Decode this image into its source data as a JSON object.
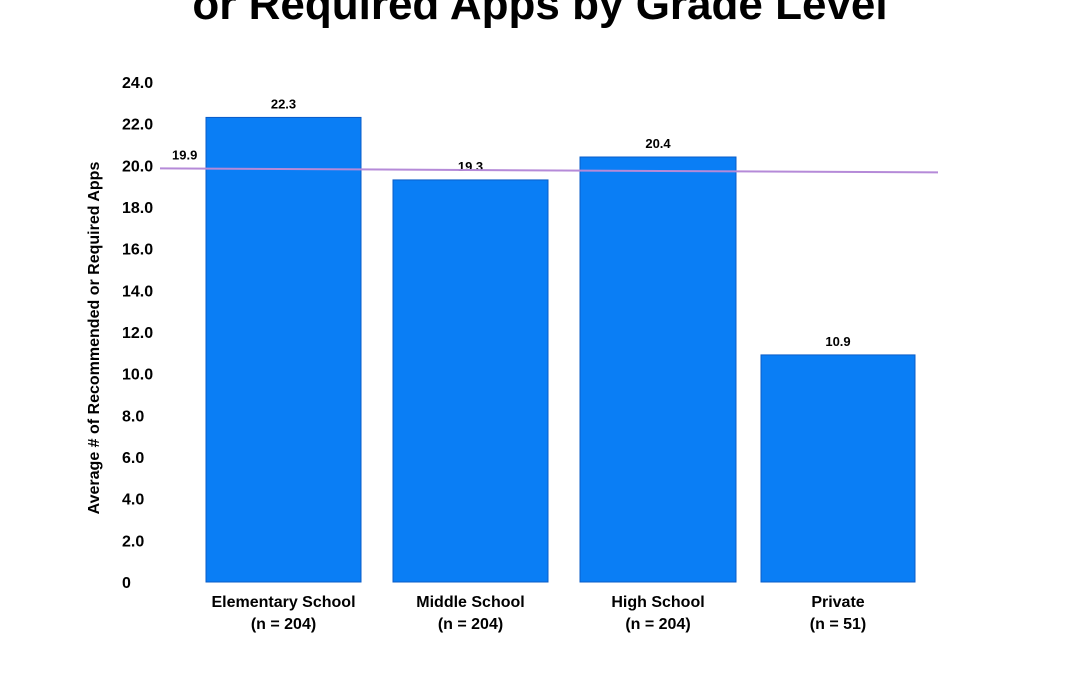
{
  "chart_data": {
    "type": "bar",
    "title": "or Required Apps by Grade Level",
    "ylabel": "Average # of Recommended or Required Apps",
    "xlabel": "",
    "ylim": [
      0,
      24
    ],
    "yticks": [
      "0",
      "2.0",
      "4.0",
      "6.0",
      "8.0",
      "10.0",
      "12.0",
      "14.0",
      "16.0",
      "18.0",
      "20.0",
      "22.0",
      "24.0"
    ],
    "categories": [
      {
        "name": "Elementary School",
        "n": "(n = 204)"
      },
      {
        "name": "Middle School",
        "n": "(n = 204)"
      },
      {
        "name": "High School",
        "n": "(n = 204)"
      },
      {
        "name": "Private",
        "n": "(n = 51)"
      }
    ],
    "values": [
      22.3,
      19.3,
      20.4,
      10.9
    ],
    "value_labels": [
      "22.3",
      "19.3",
      "20.4",
      "10.9"
    ],
    "average": {
      "value": 19.9,
      "label": "19.9"
    },
    "grid": false,
    "bar_color": "#0a7ef5",
    "average_line_color": "#b58ad8"
  }
}
